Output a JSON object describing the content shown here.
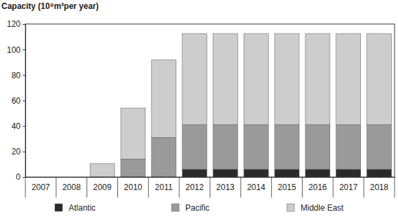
{
  "chart_data": {
    "type": "bar",
    "stacked": true,
    "grid": false,
    "legend": "bottom",
    "y_label": "Capacity (10⁹m³per year)",
    "categories": [
      "2007",
      "2008",
      "2009",
      "2010",
      "2011",
      "2012",
      "2013",
      "2014",
      "2015",
      "2016",
      "2017",
      "2018"
    ],
    "series": [
      {
        "name": "Atlantic",
        "color": "#2b2b2b",
        "values": [
          0,
          0,
          0,
          0,
          0,
          6,
          6,
          6,
          6,
          6,
          6,
          6
        ]
      },
      {
        "name": "Pacific",
        "color": "#9a9a9a",
        "values": [
          0,
          0,
          0,
          14,
          31,
          35,
          35,
          35,
          35,
          35,
          35,
          35
        ]
      },
      {
        "name": "Middle East",
        "color": "#cdcdcd",
        "values": [
          0,
          0,
          10.5,
          40,
          61,
          71.5,
          71.5,
          71.5,
          71.5,
          71.5,
          71.5,
          71.5
        ]
      }
    ],
    "ylim": [
      0,
      120
    ],
    "yticks": [
      0,
      20,
      40,
      60,
      80,
      100,
      120
    ]
  }
}
